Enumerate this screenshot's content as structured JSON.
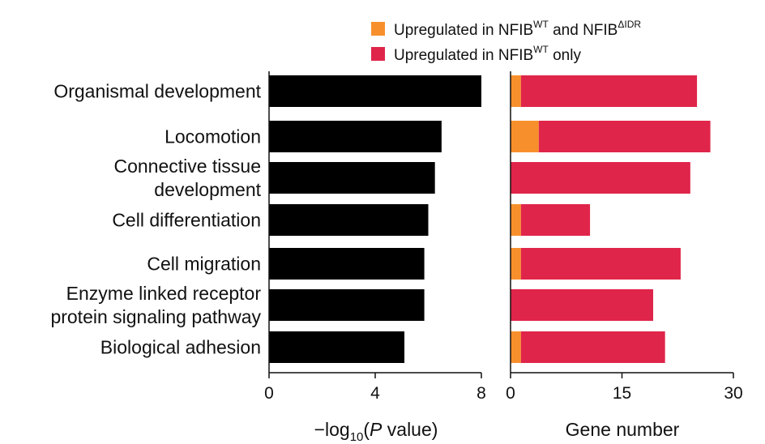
{
  "chart_data": [
    {
      "type": "bar",
      "orientation": "horizontal",
      "categories": [
        [
          "Organismal development"
        ],
        [
          "Locomotion"
        ],
        [
          "Connective tissue",
          "development"
        ],
        [
          "Cell differentiation"
        ],
        [
          "Cell migration"
        ],
        [
          "Enzyme linked receptor",
          "protein signaling pathway"
        ],
        [
          "Biological adhesion"
        ]
      ],
      "values": [
        8.0,
        6.5,
        6.25,
        6.0,
        5.85,
        5.85,
        5.1
      ],
      "xlim": [
        0,
        8
      ],
      "xticks": [
        "0",
        "4",
        "8"
      ],
      "xlabel": {
        "prefix": "−log",
        "sub": "10",
        "open": "(",
        "italic": "P",
        "rest": " value)"
      },
      "color": "#000000"
    },
    {
      "type": "bar",
      "orientation": "horizontal",
      "stacked": true,
      "xlim": [
        0,
        30
      ],
      "xticks": [
        "0",
        "15",
        "30"
      ],
      "xlabel": "Gene number",
      "series": [
        {
          "name": {
            "base": "Upregulated in NFIB",
            "sup1": "WT",
            "mid": " and NFIB",
            "sup2": "ΔIDR"
          },
          "color": "#f7902c",
          "values": [
            1.4,
            3.8,
            0,
            1.4,
            1.4,
            0,
            1.4
          ]
        },
        {
          "name": {
            "base": "Upregulated in NFIB",
            "sup1": "WT",
            "rest": " only"
          },
          "color": "#e0254a",
          "values": [
            23.7,
            23.1,
            24.2,
            9.3,
            21.5,
            19.2,
            19.4
          ]
        }
      ],
      "legend": "top"
    }
  ]
}
